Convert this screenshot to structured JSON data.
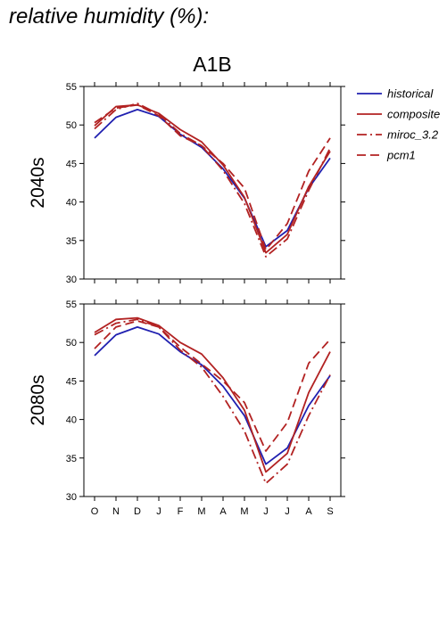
{
  "page": {
    "title": "relative humidity (%):"
  },
  "chart_data": {
    "type": "line",
    "scenario": "A1B",
    "months": [
      "O",
      "N",
      "D",
      "J",
      "F",
      "M",
      "A",
      "M",
      "J",
      "J",
      "A",
      "S"
    ],
    "ylim": [
      30,
      55
    ],
    "yticks": [
      30,
      35,
      40,
      45,
      50,
      55
    ],
    "grid": false,
    "legend_position": "top-right",
    "legend": [
      {
        "key": "historical",
        "label": "historical",
        "color": "#2020b0",
        "style": "solid"
      },
      {
        "key": "composite",
        "label": "composite",
        "color": "#b22222",
        "style": "solid"
      },
      {
        "key": "miroc",
        "label": "miroc_3.2",
        "color": "#b22222",
        "style": "dashdot"
      },
      {
        "key": "pcm",
        "label": "pcm1",
        "color": "#b22222",
        "style": "dashed"
      }
    ],
    "panels": [
      {
        "label": "2040s",
        "series": [
          {
            "key": "historical",
            "values": [
              48.3,
              51.0,
              52.0,
              51.1,
              48.8,
              47.1,
              44.3,
              40.5,
              34.2,
              36.3,
              41.8,
              45.7
            ]
          },
          {
            "key": "composite",
            "values": [
              49.9,
              52.4,
              52.6,
              51.5,
              49.4,
              47.8,
              44.8,
              40.6,
              33.4,
              35.8,
              42.0,
              46.6
            ]
          },
          {
            "key": "miroc",
            "values": [
              49.5,
              52.0,
              52.8,
              51.4,
              48.9,
              47.3,
              44.1,
              39.8,
              32.9,
              35.2,
              41.5,
              47.0
            ]
          },
          {
            "key": "pcm",
            "values": [
              50.3,
              52.2,
              52.6,
              51.2,
              48.6,
              47.3,
              45.0,
              41.8,
              33.8,
              37.2,
              44.0,
              48.3
            ]
          }
        ]
      },
      {
        "label": "2080s",
        "series": [
          {
            "key": "historical",
            "values": [
              48.3,
              51.0,
              52.0,
              51.1,
              48.8,
              47.1,
              44.3,
              40.5,
              34.2,
              36.3,
              41.8,
              45.7
            ]
          },
          {
            "key": "composite",
            "values": [
              51.3,
              53.0,
              53.2,
              52.2,
              50.0,
              48.5,
              45.4,
              41.2,
              33.2,
              35.6,
              43.5,
              48.8
            ]
          },
          {
            "key": "miroc",
            "values": [
              51.0,
              52.5,
              53.0,
              52.0,
              49.0,
              46.8,
              43.0,
              38.5,
              31.7,
              34.2,
              40.5,
              45.8
            ]
          },
          {
            "key": "pcm",
            "values": [
              49.2,
              52.0,
              52.8,
              52.0,
              49.4,
              47.2,
              45.0,
              42.2,
              35.9,
              39.6,
              47.3,
              50.4
            ]
          }
        ]
      }
    ]
  }
}
